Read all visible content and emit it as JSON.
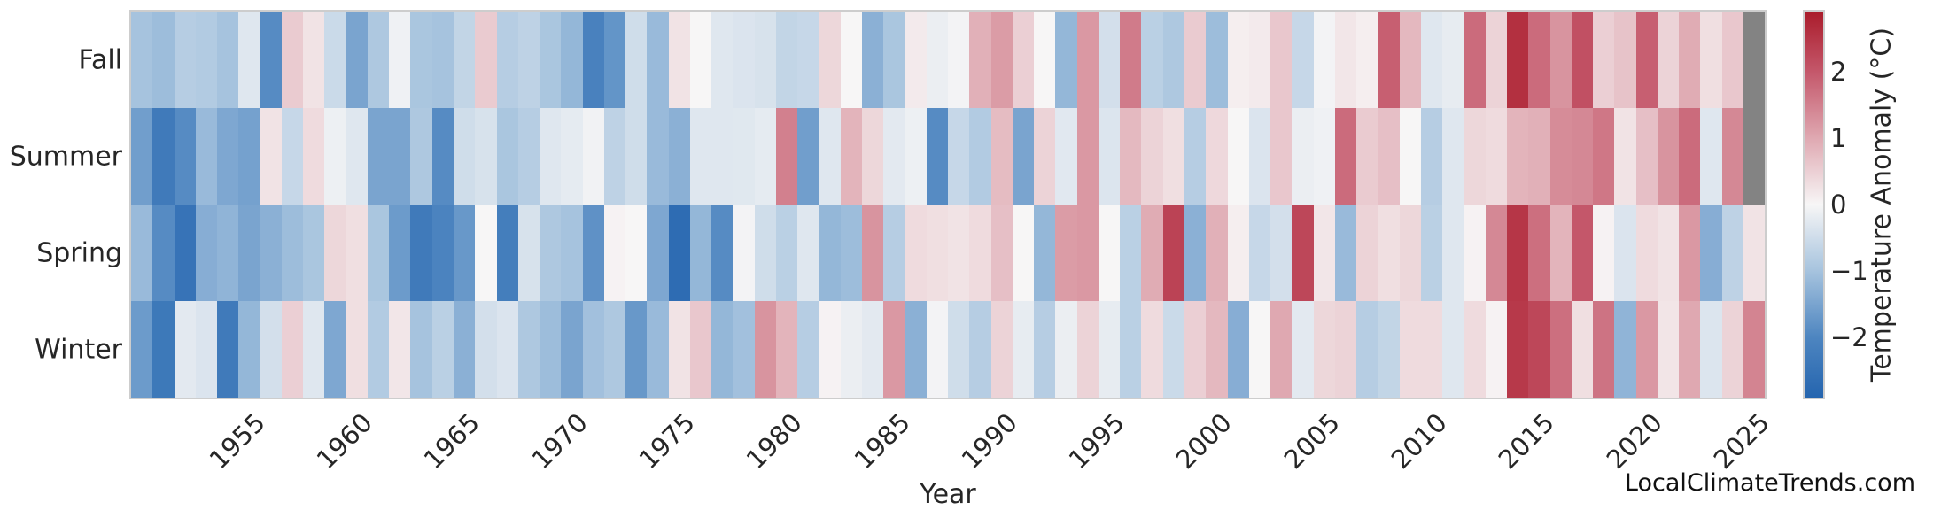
{
  "figure": {
    "xlabel": "Year",
    "watermark": "LocalClimateTrends.com"
  },
  "chart_data": {
    "type": "heatmap",
    "title": "",
    "xlabel": "Year",
    "ylabel": "",
    "year_start": 1950,
    "year_end": 2025,
    "x_tick_labels": [
      "1955",
      "1960",
      "1965",
      "1970",
      "1975",
      "1980",
      "1985",
      "1990",
      "1995",
      "2000",
      "2005",
      "2010",
      "2015",
      "2020",
      "2025"
    ],
    "categories_y": [
      "Fall",
      "Summer",
      "Spring",
      "Winter"
    ],
    "legend_position": "right-colorbar",
    "grid": false,
    "colorbar": {
      "label": "Temperature Anomaly (°C)",
      "tick_labels": [
        "2",
        "1",
        "0",
        "−1",
        "−2"
      ],
      "tick_values": [
        2,
        1,
        0,
        -1,
        -2
      ],
      "vmin": -2.9,
      "vmax": 2.9,
      "anchors": [
        {
          "v": -2.9,
          "color": "#2565af"
        },
        {
          "v": -2.0,
          "color": "#4d85c0"
        },
        {
          "v": -1.0,
          "color": "#a6c3de"
        },
        {
          "v": 0.0,
          "color": "#f7f6f6"
        },
        {
          "v": 1.0,
          "color": "#dfa8b1"
        },
        {
          "v": 2.0,
          "color": "#c4576a"
        },
        {
          "v": 2.9,
          "color": "#aa1c2b"
        }
      ]
    },
    "missing_color": "#838383",
    "series": [
      {
        "name": "Fall",
        "values": [
          -1.0,
          -1.1,
          -0.8,
          -0.85,
          -1.0,
          -0.3,
          -1.9,
          0.55,
          0.25,
          -0.55,
          -1.5,
          -0.9,
          -0.1,
          -0.95,
          -1.0,
          -0.65,
          0.55,
          -0.8,
          -0.7,
          -0.95,
          -1.2,
          -2.1,
          -1.75,
          -0.5,
          -1.15,
          0.25,
          0.0,
          -0.3,
          -0.35,
          -0.4,
          -0.65,
          -0.6,
          0.4,
          0.0,
          -1.3,
          -0.95,
          0.15,
          -0.15,
          -0.05,
          0.9,
          1.15,
          0.5,
          0.0,
          -1.2,
          1.2,
          -0.45,
          1.55,
          -0.75,
          -0.9,
          0.55,
          -1.1,
          0.1,
          0.15,
          0.6,
          -0.6,
          -0.05,
          0.2,
          0.1,
          1.9,
          0.8,
          -0.3,
          -0.2,
          1.75,
          0.45,
          2.6,
          1.75,
          1.25,
          2.1,
          0.5,
          0.65,
          1.9,
          0.45,
          0.95,
          0.3,
          0.6,
          null
        ]
      },
      {
        "name": "Summer",
        "values": [
          -1.6,
          -2.3,
          -1.9,
          -1.15,
          -1.45,
          -1.55,
          0.25,
          -0.6,
          0.35,
          -0.12,
          -0.3,
          -1.5,
          -1.5,
          -0.9,
          -1.9,
          -0.5,
          -0.4,
          -0.95,
          -0.8,
          -0.3,
          -0.22,
          -0.08,
          -0.7,
          -0.5,
          -1.15,
          -1.3,
          -0.3,
          -0.3,
          -0.28,
          -0.22,
          1.5,
          -1.6,
          -0.3,
          0.85,
          0.4,
          -0.25,
          -0.12,
          -1.9,
          -0.6,
          -0.85,
          0.75,
          -1.5,
          0.45,
          -0.27,
          1.2,
          -0.33,
          0.78,
          0.45,
          0.3,
          -0.8,
          0.38,
          0.0,
          -0.35,
          0.6,
          -0.15,
          -0.1,
          1.75,
          0.55,
          0.7,
          0.0,
          -0.8,
          -0.3,
          0.4,
          0.35,
          0.85,
          0.9,
          1.35,
          1.4,
          1.6,
          0.25,
          0.7,
          1.25,
          1.75,
          -0.3,
          1.4,
          null
        ]
      },
      {
        "name": "Spring",
        "values": [
          -1.15,
          -1.9,
          -2.5,
          -1.35,
          -1.25,
          -1.5,
          -1.3,
          -1.1,
          -0.95,
          0.4,
          0.3,
          -0.95,
          -1.65,
          -2.3,
          -2.05,
          -1.7,
          0.0,
          -2.2,
          -0.4,
          -0.9,
          -1.0,
          -1.8,
          0.05,
          0.0,
          -1.45,
          -2.7,
          -1.2,
          -1.9,
          -0.05,
          -0.5,
          -0.75,
          -0.3,
          -1.2,
          -1.1,
          1.25,
          -0.8,
          0.35,
          0.3,
          0.25,
          0.35,
          0.7,
          0.0,
          -1.2,
          1.15,
          1.2,
          0.0,
          -0.75,
          0.95,
          2.3,
          -1.3,
          0.9,
          0.1,
          -0.6,
          -0.45,
          2.25,
          0.2,
          -1.15,
          0.45,
          0.3,
          0.4,
          -0.75,
          -0.3,
          0.05,
          1.4,
          2.5,
          1.7,
          0.85,
          2.0,
          0.05,
          -0.35,
          0.35,
          0.25,
          1.2,
          -1.35,
          -0.7,
          0.25
        ]
      },
      {
        "name": "Winter",
        "values": [
          -1.65,
          -2.35,
          -0.25,
          -0.35,
          -2.3,
          -1.2,
          -0.45,
          0.5,
          -0.3,
          -1.45,
          0.3,
          -0.85,
          0.2,
          -1.0,
          -0.75,
          -1.3,
          -0.45,
          -0.35,
          -0.9,
          -1.1,
          -1.5,
          -1.05,
          -0.9,
          -1.7,
          -1.15,
          0.25,
          0.6,
          -1.2,
          -1.05,
          1.25,
          0.85,
          -0.8,
          0.05,
          -0.15,
          -0.25,
          1.2,
          -1.3,
          -0.05,
          -0.5,
          -0.8,
          0.45,
          -0.2,
          -0.8,
          -0.15,
          0.45,
          -0.2,
          -0.75,
          0.35,
          -0.55,
          0.5,
          0.8,
          -1.35,
          0.0,
          1.0,
          -0.25,
          0.4,
          0.45,
          -0.8,
          -0.65,
          0.35,
          0.35,
          -0.3,
          0.35,
          0.05,
          2.45,
          2.25,
          1.7,
          0.3,
          1.65,
          -1.25,
          1.2,
          0.22,
          1.0,
          -0.33,
          0.45,
          1.45
        ]
      }
    ]
  }
}
